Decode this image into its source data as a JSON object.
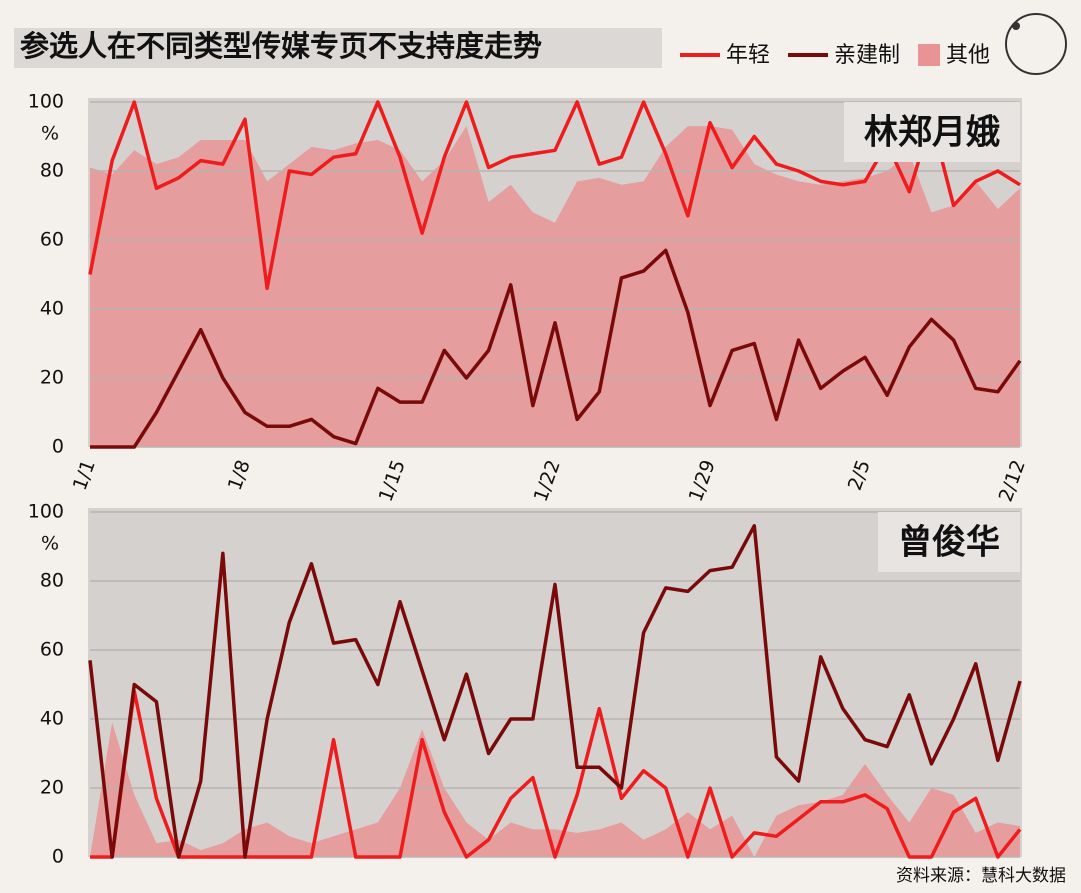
{
  "title": "参选人在不同类型传媒专页不支持度走势",
  "source": "资料来源：慧科大数据",
  "chart_data": [
    {
      "type": "line",
      "label": "林郑月娥",
      "y_unit": "%",
      "categories": [
        "1/1",
        null,
        null,
        null,
        null,
        null,
        null,
        "1/8",
        null,
        null,
        null,
        null,
        null,
        null,
        "1/15",
        null,
        null,
        null,
        null,
        null,
        null,
        "1/22",
        null,
        null,
        null,
        null,
        null,
        null,
        "1/29",
        null,
        null,
        null,
        null,
        null,
        null,
        "2/5",
        null,
        null,
        null,
        null,
        null,
        null,
        "2/12"
      ],
      "ylim": [
        0,
        100
      ],
      "yticks": [
        0,
        20,
        40,
        60,
        80,
        100
      ],
      "grid": true,
      "series": [
        {
          "name": "年轻",
          "color": "#ee1c1c",
          "values": [
            50,
            83,
            100,
            75,
            78,
            83,
            82,
            95,
            46,
            80,
            79,
            84,
            85,
            100,
            84,
            62,
            84,
            100,
            81,
            84,
            85,
            86,
            100,
            82,
            84,
            100,
            85,
            67,
            94,
            81,
            90,
            82,
            80,
            77,
            76,
            77,
            88,
            74,
            95,
            70,
            77,
            80,
            76
          ]
        },
        {
          "name": "亲建制",
          "color": "#7a0a0a",
          "values": [
            0,
            0,
            0,
            10,
            22,
            34,
            20,
            10,
            6,
            6,
            8,
            3,
            1,
            17,
            13,
            13,
            28,
            20,
            28,
            47,
            12,
            36,
            8,
            16,
            49,
            51,
            57,
            39,
            12,
            28,
            30,
            8,
            31,
            17,
            22,
            26,
            15,
            29,
            37,
            31,
            17,
            16,
            25
          ]
        },
        {
          "name": "其他",
          "color": "#e89494",
          "type": "area",
          "values": [
            81,
            79,
            86,
            82,
            84,
            89,
            89,
            89,
            77,
            82,
            87,
            86,
            88,
            89,
            86,
            77,
            83,
            93,
            71,
            76,
            68,
            65,
            77,
            78,
            76,
            77,
            87,
            93,
            93,
            92,
            82,
            79,
            77,
            76,
            77,
            78,
            80,
            85,
            68,
            70,
            77,
            69,
            75
          ]
        }
      ]
    },
    {
      "type": "line",
      "label": "曾俊华",
      "y_unit": "%",
      "ylim": [
        0,
        100
      ],
      "yticks": [
        0,
        20,
        40,
        60,
        80,
        100
      ],
      "grid": true,
      "series": [
        {
          "color": "#ee1c1c",
          "values": [
            0,
            0,
            48,
            17,
            0,
            0,
            0,
            0,
            0,
            0,
            0,
            34,
            0,
            0,
            0,
            34,
            13,
            0,
            5,
            17,
            23,
            0,
            18,
            43,
            17,
            25,
            20,
            0,
            20,
            0,
            7,
            6,
            11,
            16,
            16,
            18,
            14,
            0,
            0,
            13,
            17,
            0,
            8
          ]
        },
        {
          "color": "#7a0a0a",
          "values": [
            57,
            0,
            50,
            45,
            0,
            22,
            88,
            0,
            40,
            68,
            85,
            62,
            63,
            50,
            74,
            54,
            34,
            53,
            30,
            40,
            40,
            79,
            26,
            26,
            20,
            65,
            78,
            77,
            83,
            84,
            96,
            29,
            22,
            58,
            43,
            34,
            32,
            47,
            27,
            40,
            56,
            28,
            51
          ]
        },
        {
          "color": "#e89494",
          "type": "area",
          "values": [
            0,
            39,
            18,
            4,
            5,
            2,
            4,
            8,
            10,
            6,
            4,
            6,
            8,
            10,
            20,
            37,
            20,
            10,
            5,
            10,
            8,
            8,
            7,
            8,
            10,
            5,
            8,
            13,
            8,
            12,
            0,
            12,
            15,
            16,
            18,
            27,
            18,
            10,
            20,
            18,
            7,
            10,
            9
          ]
        }
      ]
    }
  ]
}
